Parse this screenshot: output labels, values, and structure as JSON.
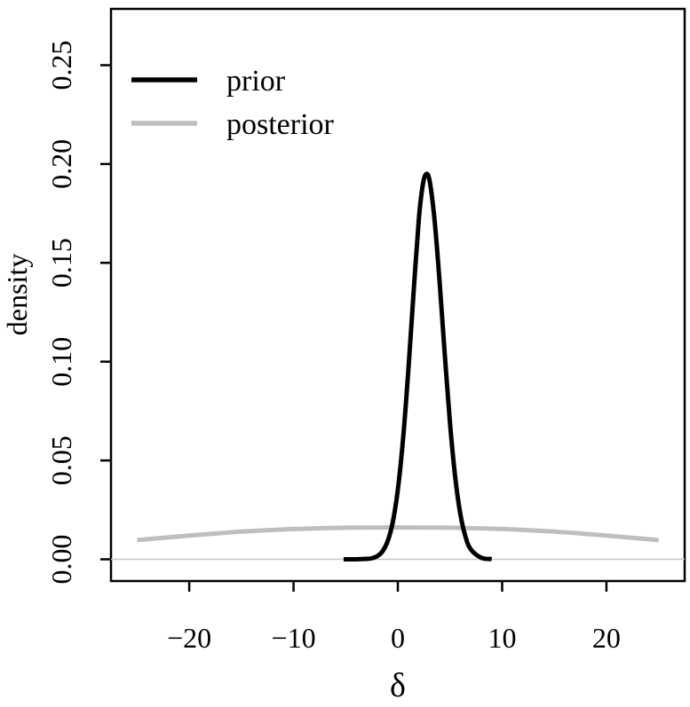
{
  "chart_data": {
    "type": "line",
    "xlabel": "δ",
    "ylabel": "density",
    "xlim": [
      -27.5,
      27.5
    ],
    "ylim": [
      -0.011,
      0.2785
    ],
    "x_ticks": [
      -20,
      -10,
      0,
      10,
      20
    ],
    "x_tick_labels": [
      "−20",
      "−10",
      "0",
      "10",
      "20"
    ],
    "y_ticks": [
      0.0,
      0.05,
      0.1,
      0.15,
      0.2,
      0.25
    ],
    "y_tick_labels": [
      "0.00",
      "0.05",
      "0.10",
      "0.15",
      "0.20",
      "0.25"
    ],
    "legend_position": "top-left",
    "reference_line": {
      "y": 0,
      "color": "#c8c8c8"
    },
    "series": [
      {
        "name": "prior",
        "color": "#000000",
        "x": [
          -5.2,
          -4,
          -3,
          -2.5,
          -2,
          -1.5,
          -1,
          -0.5,
          0,
          0.5,
          1,
          1.5,
          2,
          2.3,
          2.6,
          3,
          3.5,
          4,
          4.5,
          5,
          5.5,
          6,
          6.5,
          7,
          8,
          9
        ],
        "values": [
          0.0,
          0.0,
          0.0002,
          0.0005,
          0.0015,
          0.0038,
          0.0088,
          0.0184,
          0.0352,
          0.0608,
          0.0951,
          0.1343,
          0.1712,
          0.1862,
          0.194,
          0.1927,
          0.1728,
          0.1407,
          0.1036,
          0.069,
          0.0416,
          0.0227,
          0.0112,
          0.005,
          0.0008,
          0.0001
        ]
      },
      {
        "name": "posterior",
        "color": "#bebebe",
        "x": [
          -25,
          -20,
          -15,
          -10,
          -5,
          0,
          5,
          10,
          15,
          20,
          25
        ],
        "values": [
          0.0097,
          0.012,
          0.014,
          0.0153,
          0.016,
          0.0161,
          0.016,
          0.0153,
          0.014,
          0.012,
          0.0097
        ]
      }
    ]
  }
}
